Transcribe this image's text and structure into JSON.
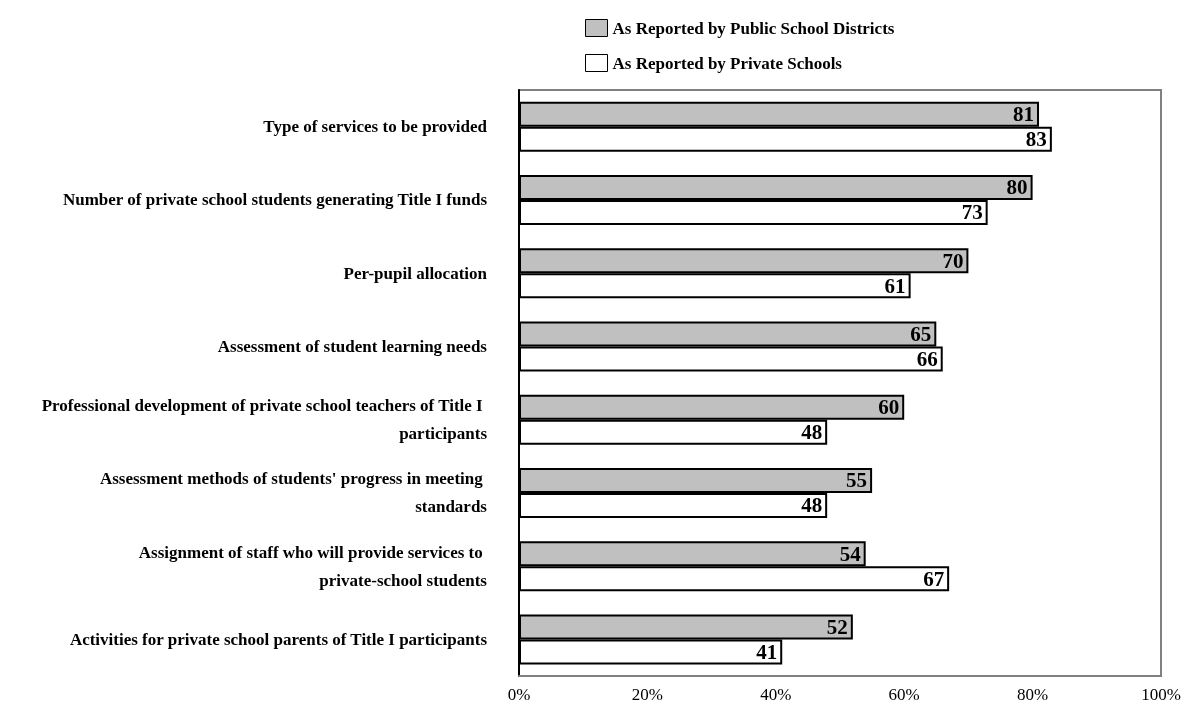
{
  "chart_data": {
    "type": "bar",
    "orientation": "horizontal",
    "categories": [
      "Type of services to be provided",
      "Number of private school students generating Title I funds",
      "Per-pupil allocation",
      "Assessment of student learning needs",
      "Professional development of private school teachers of Title I participants",
      "Assessment methods of students' progress in meeting standards",
      "Assignment of staff who will provide services to private-school students",
      "Activities for private school parents of Title I participants"
    ],
    "series": [
      {
        "name": "As Reported by Public School Districts",
        "color": "#c0c0c0",
        "values": [
          81,
          80,
          70,
          65,
          60,
          55,
          54,
          52
        ]
      },
      {
        "name": "As Reported by Private Schools",
        "color": "#ffffff",
        "values": [
          83,
          73,
          61,
          66,
          48,
          48,
          67,
          41
        ]
      }
    ],
    "xlim": [
      0,
      100
    ],
    "xticks": [
      {
        "value": 0,
        "label": "0%"
      },
      {
        "value": 20,
        "label": "20%"
      },
      {
        "value": 40,
        "label": "40%"
      },
      {
        "value": 60,
        "label": "60%"
      },
      {
        "value": 80,
        "label": "80%"
      },
      {
        "value": 100,
        "label": "100%"
      }
    ],
    "data_labels": true,
    "legend": "top",
    "grid": false
  }
}
